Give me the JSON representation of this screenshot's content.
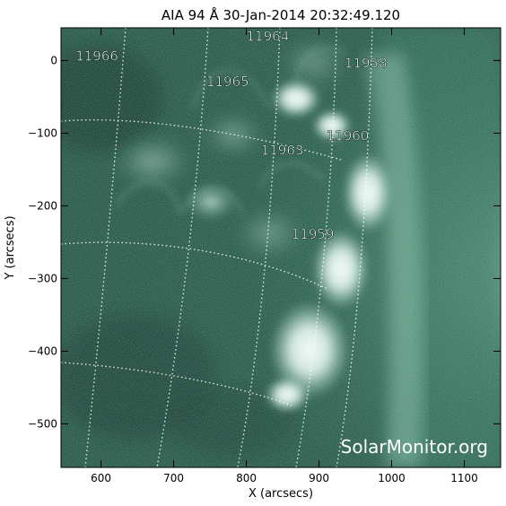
{
  "title": "AIA 94 Å 30-Jan-2014 20:32:49.120",
  "xlabel": "X (arcsecs)",
  "ylabel": "Y (arcsecs)",
  "watermark": "SolarMonitor.org",
  "colors": {
    "background": "#ffffff",
    "disk_dark": "#0d2e24",
    "disk_mid": "#1f5c48",
    "disk_light": "#5f9f86",
    "bright": "#f2fbf7",
    "axis": "#000000",
    "grid": "#ffffff"
  },
  "axes": {
    "xlim": [
      545,
      1150
    ],
    "ylim": [
      -560,
      45
    ],
    "xticks": [
      {
        "value": 600,
        "label": "600"
      },
      {
        "value": 700,
        "label": "700"
      },
      {
        "value": 800,
        "label": "800"
      },
      {
        "value": 900,
        "label": "900"
      },
      {
        "value": 1000,
        "label": "1000"
      },
      {
        "value": 1100,
        "label": "1100"
      }
    ],
    "yticks": [
      {
        "value": 0,
        "label": "0"
      },
      {
        "value": -100,
        "label": "-100"
      },
      {
        "value": -200,
        "label": "-200"
      },
      {
        "value": -300,
        "label": "-300"
      },
      {
        "value": -400,
        "label": "-400"
      },
      {
        "value": -500,
        "label": "-500"
      }
    ]
  },
  "regions": [
    {
      "label": "11966",
      "x": 565,
      "y": 0
    },
    {
      "label": "11964",
      "x": 800,
      "y": 27
    },
    {
      "label": "11965",
      "x": 745,
      "y": -35
    },
    {
      "label": "11958",
      "x": 935,
      "y": -10
    },
    {
      "label": "11960",
      "x": 910,
      "y": -110
    },
    {
      "label": "11963",
      "x": 820,
      "y": -130
    },
    {
      "label": "11959",
      "x": 862,
      "y": -245
    }
  ]
}
